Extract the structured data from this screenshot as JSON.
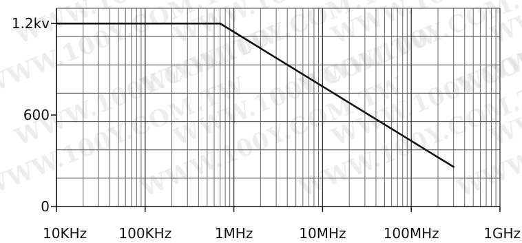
{
  "chart_data": {
    "type": "line",
    "title": "",
    "xlabel": "",
    "ylabel": "",
    "x_scale": "log",
    "xlim_hz": [
      10000,
      1000000000
    ],
    "ylim": [
      0,
      1300
    ],
    "grid": true,
    "x_tick_labels": [
      "10KHz",
      "100KHz",
      "1MHz",
      "10MHz",
      "100MHz",
      "1GHz"
    ],
    "x_tick_values_hz": [
      10000,
      100000,
      1000000,
      10000000,
      100000000,
      1000000000
    ],
    "y_tick_labels": [
      "0",
      "600",
      "1.2kv"
    ],
    "y_tick_values": [
      0,
      600,
      1200
    ],
    "series": [
      {
        "x_hz": [
          10000,
          700000,
          300000000
        ],
        "values": [
          1200,
          1200,
          260
        ],
        "color": "#111111"
      }
    ],
    "watermark_text": "WWW.100Y.COM.TW"
  }
}
